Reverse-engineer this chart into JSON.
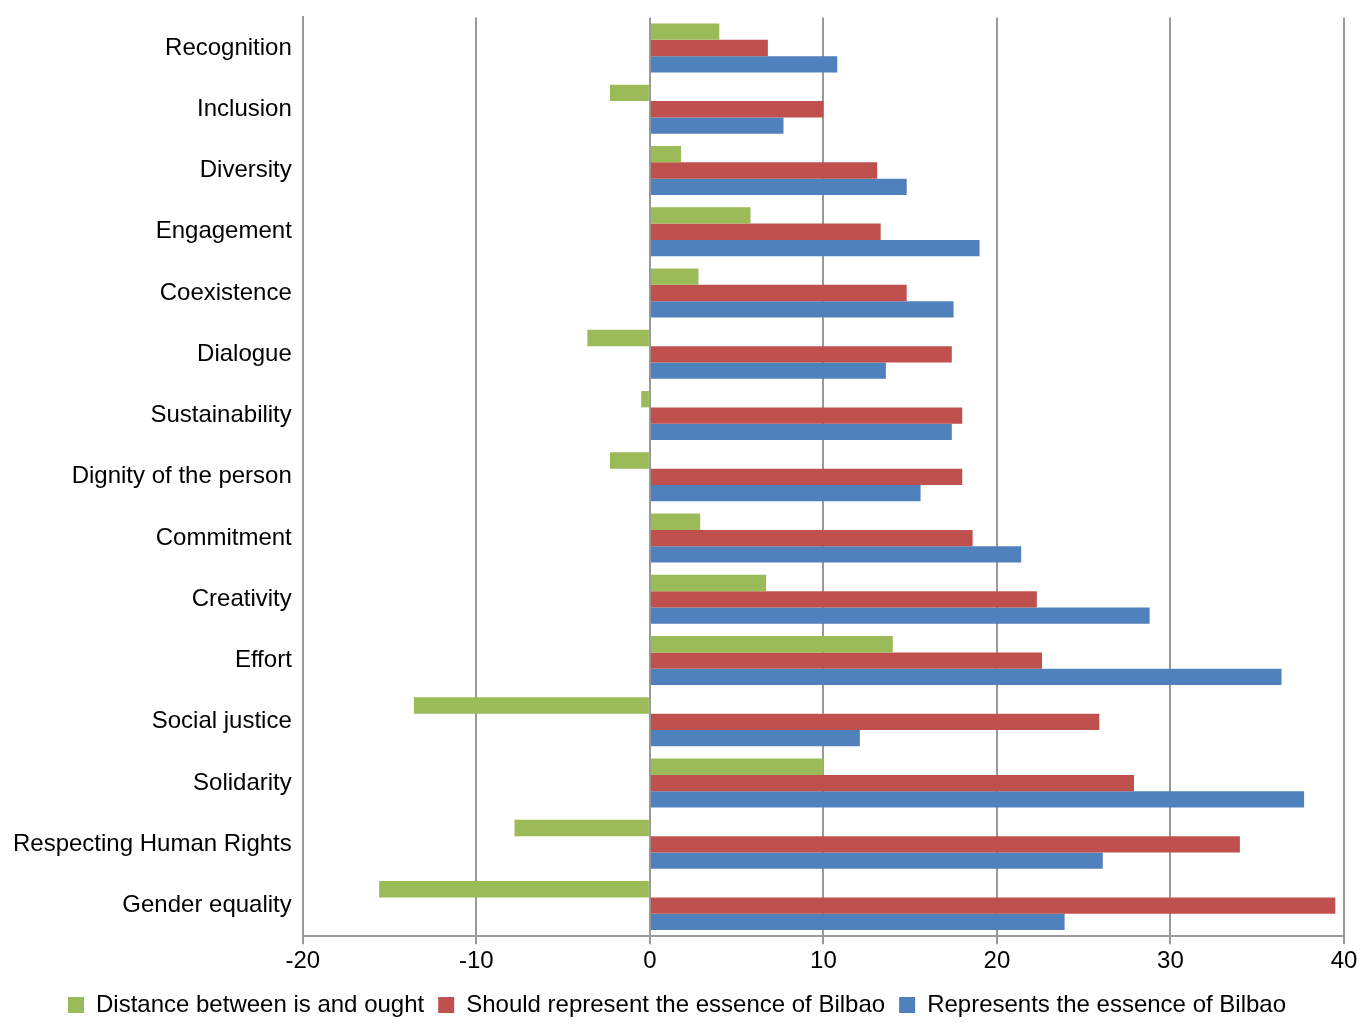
{
  "chart_data": {
    "type": "bar",
    "orientation": "horizontal",
    "categories": [
      "Recognition",
      "Inclusion",
      "Diversity",
      "Engagement",
      "Coexistence",
      "Dialogue",
      "Sustainability",
      "Dignity of the person",
      "Commitment",
      "Creativity",
      "Effort",
      "Social justice",
      "Solidarity",
      "Respecting Human Rights",
      "Gender equality"
    ],
    "series": [
      {
        "name": "Distance between is and ought",
        "color": "#9bbb59",
        "values": [
          4.0,
          -2.3,
          1.8,
          5.8,
          2.8,
          -3.6,
          -0.5,
          -2.3,
          2.9,
          6.7,
          14.0,
          -13.6,
          10.0,
          -7.8,
          -15.6
        ]
      },
      {
        "name": "Should represent the essence of Bilbao",
        "color": "#c0504d",
        "values": [
          6.8,
          10.0,
          13.1,
          13.3,
          14.8,
          17.4,
          18.0,
          18.0,
          18.6,
          22.3,
          22.6,
          25.9,
          27.9,
          34.0,
          39.5
        ]
      },
      {
        "name": "Represents the essence of Bilbao",
        "color": "#4f81bd",
        "values": [
          10.8,
          7.7,
          14.8,
          19.0,
          17.5,
          13.6,
          17.4,
          15.6,
          21.4,
          28.8,
          36.4,
          12.1,
          37.7,
          26.1,
          23.9
        ]
      }
    ],
    "xlim": [
      -20,
      40
    ],
    "xticks": [
      -20,
      -10,
      0,
      10,
      20,
      30,
      40
    ],
    "grid": "x",
    "legend": "bottom"
  }
}
